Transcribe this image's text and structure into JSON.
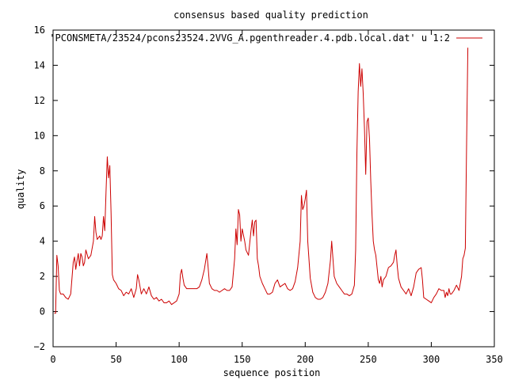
{
  "chart_data": {
    "type": "line",
    "title": "consensus based quality prediction",
    "xlabel": "sequence position",
    "ylabel": "quality",
    "xlim": [
      0,
      350
    ],
    "ylim": [
      -2,
      16
    ],
    "xticks": [
      0,
      50,
      100,
      150,
      200,
      250,
      300,
      350
    ],
    "yticks": [
      -2,
      0,
      2,
      4,
      6,
      8,
      10,
      12,
      14,
      16
    ],
    "grid": false,
    "legend_position": "top-right",
    "series": [
      {
        "name": "'PCONSMETA/23524/pcons23524.2VVG_A.pgenthreader.4.pdb.local.dat' u 1:2",
        "color": "#cc0000",
        "points": [
          [
            1,
            -0.1
          ],
          [
            2,
            -0.1
          ],
          [
            3,
            3.2
          ],
          [
            4,
            2.6
          ],
          [
            5,
            1.2
          ],
          [
            6,
            1.0
          ],
          [
            7,
            1.0
          ],
          [
            8,
            1.0
          ],
          [
            10,
            0.8
          ],
          [
            12,
            0.7
          ],
          [
            14,
            1.0
          ],
          [
            16,
            2.8
          ],
          [
            17,
            3.1
          ],
          [
            18,
            2.4
          ],
          [
            19,
            2.9
          ],
          [
            20,
            3.3
          ],
          [
            21,
            2.6
          ],
          [
            22,
            3.3
          ],
          [
            23,
            3.1
          ],
          [
            24,
            2.6
          ],
          [
            25,
            2.8
          ],
          [
            26,
            3.5
          ],
          [
            28,
            3.0
          ],
          [
            30,
            3.2
          ],
          [
            32,
            4.0
          ],
          [
            33,
            5.4
          ],
          [
            34,
            4.5
          ],
          [
            35,
            4.1
          ],
          [
            37,
            4.3
          ],
          [
            38,
            4.1
          ],
          [
            39,
            4.3
          ],
          [
            40,
            5.4
          ],
          [
            41,
            4.6
          ],
          [
            42,
            6.8
          ],
          [
            43,
            8.8
          ],
          [
            44,
            7.6
          ],
          [
            45,
            8.3
          ],
          [
            46,
            5.6
          ],
          [
            47,
            2.1
          ],
          [
            48,
            1.8
          ],
          [
            50,
            1.6
          ],
          [
            52,
            1.3
          ],
          [
            54,
            1.2
          ],
          [
            56,
            0.9
          ],
          [
            58,
            1.1
          ],
          [
            60,
            1.0
          ],
          [
            62,
            1.3
          ],
          [
            64,
            0.8
          ],
          [
            66,
            1.3
          ],
          [
            67,
            2.1
          ],
          [
            68,
            1.8
          ],
          [
            70,
            1.0
          ],
          [
            72,
            1.3
          ],
          [
            74,
            1.0
          ],
          [
            76,
            1.4
          ],
          [
            78,
            0.9
          ],
          [
            80,
            0.7
          ],
          [
            82,
            0.8
          ],
          [
            84,
            0.6
          ],
          [
            86,
            0.7
          ],
          [
            88,
            0.5
          ],
          [
            90,
            0.5
          ],
          [
            92,
            0.6
          ],
          [
            94,
            0.4
          ],
          [
            96,
            0.5
          ],
          [
            98,
            0.6
          ],
          [
            100,
            1.0
          ],
          [
            101,
            2.1
          ],
          [
            102,
            2.4
          ],
          [
            103,
            1.9
          ],
          [
            104,
            1.5
          ],
          [
            106,
            1.3
          ],
          [
            110,
            1.3
          ],
          [
            114,
            1.3
          ],
          [
            116,
            1.4
          ],
          [
            118,
            1.8
          ],
          [
            120,
            2.4
          ],
          [
            122,
            3.3
          ],
          [
            123,
            2.5
          ],
          [
            124,
            1.6
          ],
          [
            126,
            1.3
          ],
          [
            128,
            1.2
          ],
          [
            130,
            1.2
          ],
          [
            132,
            1.1
          ],
          [
            134,
            1.2
          ],
          [
            136,
            1.3
          ],
          [
            138,
            1.2
          ],
          [
            140,
            1.2
          ],
          [
            142,
            1.4
          ],
          [
            144,
            3.0
          ],
          [
            145,
            4.7
          ],
          [
            146,
            3.8
          ],
          [
            147,
            5.8
          ],
          [
            148,
            5.5
          ],
          [
            149,
            4.0
          ],
          [
            150,
            4.7
          ],
          [
            152,
            4.0
          ],
          [
            153,
            3.5
          ],
          [
            155,
            3.2
          ],
          [
            157,
            4.6
          ],
          [
            158,
            5.2
          ],
          [
            159,
            4.3
          ],
          [
            160,
            5.1
          ],
          [
            161,
            5.2
          ],
          [
            162,
            3.0
          ],
          [
            163,
            2.6
          ],
          [
            164,
            2.0
          ],
          [
            166,
            1.6
          ],
          [
            168,
            1.3
          ],
          [
            170,
            1.0
          ],
          [
            172,
            1.0
          ],
          [
            174,
            1.1
          ],
          [
            176,
            1.6
          ],
          [
            178,
            1.8
          ],
          [
            180,
            1.4
          ],
          [
            182,
            1.5
          ],
          [
            184,
            1.6
          ],
          [
            186,
            1.3
          ],
          [
            188,
            1.2
          ],
          [
            190,
            1.3
          ],
          [
            192,
            1.7
          ],
          [
            194,
            2.5
          ],
          [
            196,
            4.0
          ],
          [
            197,
            6.6
          ],
          [
            198,
            5.8
          ],
          [
            199,
            6.0
          ],
          [
            200,
            6.4
          ],
          [
            201,
            6.9
          ],
          [
            202,
            4.0
          ],
          [
            204,
            1.9
          ],
          [
            206,
            1.1
          ],
          [
            208,
            0.8
          ],
          [
            210,
            0.7
          ],
          [
            212,
            0.7
          ],
          [
            214,
            0.8
          ],
          [
            216,
            1.1
          ],
          [
            218,
            1.6
          ],
          [
            220,
            2.9
          ],
          [
            221,
            4.0
          ],
          [
            222,
            3.0
          ],
          [
            223,
            2.0
          ],
          [
            225,
            1.6
          ],
          [
            227,
            1.4
          ],
          [
            229,
            1.2
          ],
          [
            231,
            1.0
          ],
          [
            233,
            1.0
          ],
          [
            235,
            0.9
          ],
          [
            237,
            1.0
          ],
          [
            239,
            1.5
          ],
          [
            240,
            3.5
          ],
          [
            241,
            9.0
          ],
          [
            242,
            12.5
          ],
          [
            243,
            14.1
          ],
          [
            244,
            12.8
          ],
          [
            245,
            13.8
          ],
          [
            246,
            12.4
          ],
          [
            247,
            10.4
          ],
          [
            248,
            7.8
          ],
          [
            249,
            10.8
          ],
          [
            250,
            11.0
          ],
          [
            251,
            9.8
          ],
          [
            252,
            7.4
          ],
          [
            253,
            5.5
          ],
          [
            254,
            4.0
          ],
          [
            255,
            3.5
          ],
          [
            256,
            3.2
          ],
          [
            257,
            2.5
          ],
          [
            258,
            1.8
          ],
          [
            259,
            1.6
          ],
          [
            260,
            2.0
          ],
          [
            261,
            1.4
          ],
          [
            262,
            1.8
          ],
          [
            264,
            2.0
          ],
          [
            266,
            2.5
          ],
          [
            268,
            2.6
          ],
          [
            270,
            2.8
          ],
          [
            271,
            3.2
          ],
          [
            272,
            3.5
          ],
          [
            273,
            2.6
          ],
          [
            274,
            1.9
          ],
          [
            276,
            1.4
          ],
          [
            278,
            1.2
          ],
          [
            280,
            1.0
          ],
          [
            282,
            1.3
          ],
          [
            284,
            0.9
          ],
          [
            286,
            1.4
          ],
          [
            288,
            2.2
          ],
          [
            290,
            2.4
          ],
          [
            292,
            2.5
          ],
          [
            293,
            1.8
          ],
          [
            294,
            0.8
          ],
          [
            296,
            0.7
          ],
          [
            298,
            0.6
          ],
          [
            300,
            0.5
          ],
          [
            302,
            0.8
          ],
          [
            304,
            1.0
          ],
          [
            306,
            1.3
          ],
          [
            308,
            1.2
          ],
          [
            310,
            1.2
          ],
          [
            311,
            0.8
          ],
          [
            312,
            1.1
          ],
          [
            313,
            0.9
          ],
          [
            314,
            1.3
          ],
          [
            315,
            1.0
          ],
          [
            316,
            1.0
          ],
          [
            318,
            1.2
          ],
          [
            320,
            1.5
          ],
          [
            322,
            1.2
          ],
          [
            324,
            2.0
          ],
          [
            325,
            3.0
          ],
          [
            326,
            3.2
          ],
          [
            327,
            3.6
          ],
          [
            328,
            9.5
          ],
          [
            329,
            15.0
          ]
        ]
      }
    ]
  }
}
